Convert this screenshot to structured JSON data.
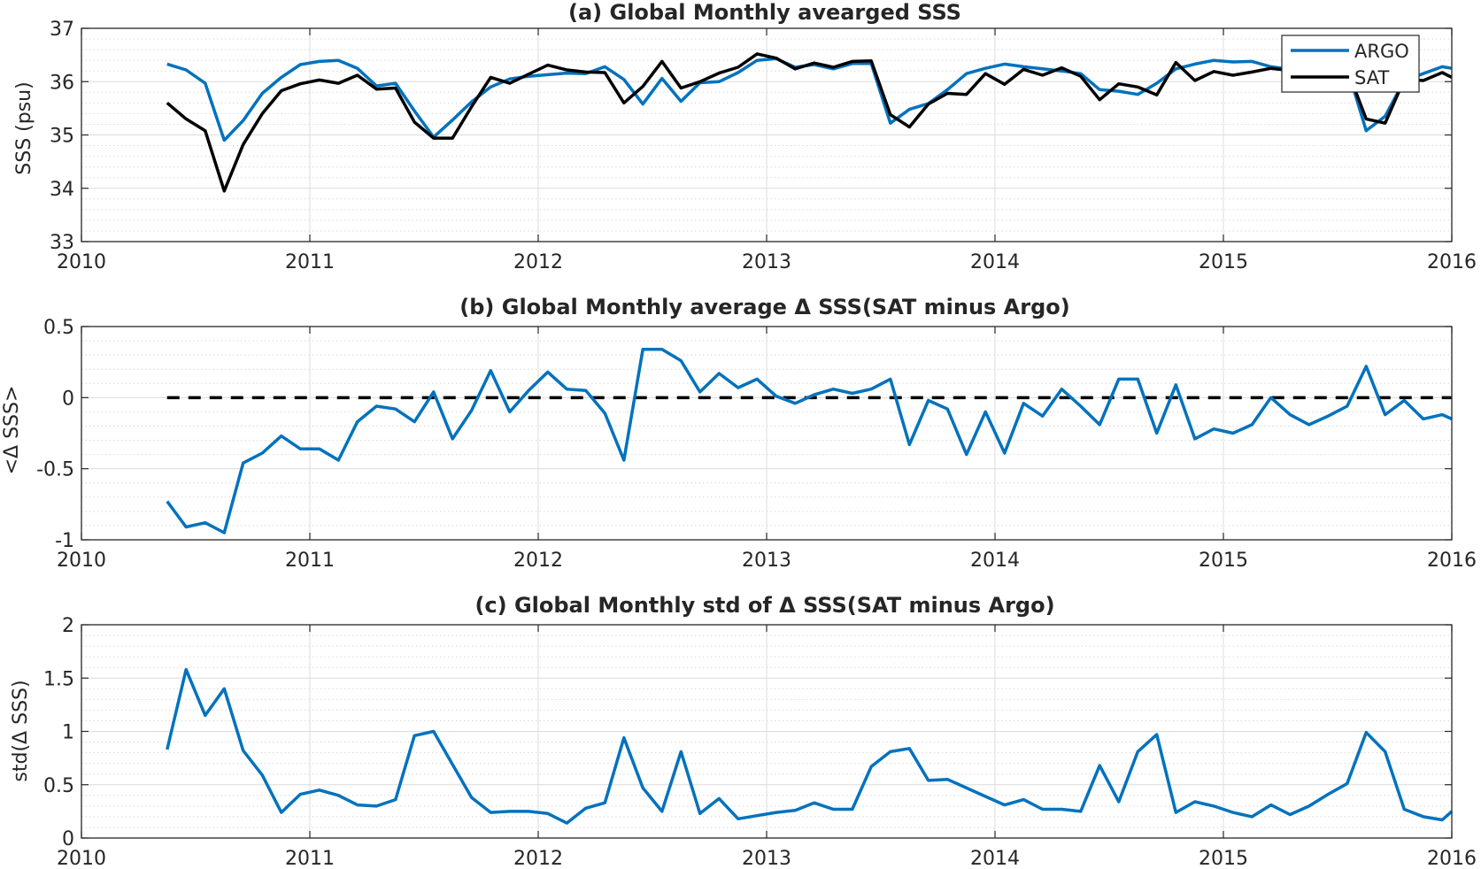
{
  "chart_data": [
    {
      "type": "line",
      "title": "(a) Global Monthly avearged SSS",
      "xlabel": "",
      "ylabel": "SSS (psu)",
      "xlim": [
        2010,
        2016
      ],
      "ylim": [
        33,
        37
      ],
      "xticks": [
        "2010",
        "2011",
        "2012",
        "2013",
        "2014",
        "2015",
        "2016"
      ],
      "yticks": [
        "33",
        "34",
        "35",
        "36",
        "37"
      ],
      "grid": true,
      "minor_grid": true,
      "legend": "top-right",
      "x": [
        2010.375,
        2010.458,
        2010.542,
        2010.625,
        2010.708,
        2010.792,
        2010.875,
        2010.958,
        2011.042,
        2011.125,
        2011.208,
        2011.292,
        2011.375,
        2011.458,
        2011.542,
        2011.625,
        2011.708,
        2011.792,
        2011.875,
        2011.958,
        2012.042,
        2012.125,
        2012.208,
        2012.292,
        2012.375,
        2012.458,
        2012.542,
        2012.625,
        2012.708,
        2012.792,
        2012.875,
        2012.958,
        2013.042,
        2013.125,
        2013.208,
        2013.292,
        2013.375,
        2013.458,
        2013.542,
        2013.625,
        2013.708,
        2013.792,
        2013.875,
        2013.958,
        2014.042,
        2014.125,
        2014.208,
        2014.292,
        2014.375,
        2014.458,
        2014.542,
        2014.625,
        2014.708,
        2014.792,
        2014.875,
        2014.958,
        2015.042,
        2015.125,
        2015.208,
        2015.292,
        2015.375,
        2015.458,
        2015.542,
        2015.625,
        2015.708,
        2015.792,
        2015.875,
        2015.958,
        2016.0
      ],
      "series": [
        {
          "name": "ARGO",
          "color": "#0072BD",
          "values": [
            36.33,
            36.22,
            35.97,
            34.9,
            35.27,
            35.78,
            36.08,
            36.32,
            36.38,
            36.4,
            36.25,
            35.92,
            35.97,
            35.45,
            34.96,
            35.28,
            35.62,
            35.9,
            36.05,
            36.1,
            36.13,
            36.16,
            36.15,
            36.28,
            36.04,
            35.58,
            36.06,
            35.63,
            35.98,
            36.0,
            36.17,
            36.4,
            36.43,
            36.27,
            36.32,
            36.24,
            36.34,
            36.34,
            35.22,
            35.48,
            35.59,
            35.85,
            36.15,
            36.25,
            36.33,
            36.28,
            36.24,
            36.2,
            36.15,
            35.85,
            35.82,
            35.76,
            35.97,
            36.24,
            36.33,
            36.4,
            36.37,
            36.38,
            36.28,
            36.23,
            36.27,
            36.22,
            36.26,
            35.08,
            35.35,
            36.02,
            36.15,
            36.28,
            36.25
          ]
        },
        {
          "name": "SAT",
          "color": "#000000",
          "values": [
            35.6,
            35.3,
            35.08,
            33.95,
            34.82,
            35.4,
            35.83,
            35.96,
            36.03,
            35.97,
            36.12,
            35.86,
            35.88,
            35.24,
            34.94,
            34.94,
            35.53,
            36.08,
            35.97,
            36.14,
            36.31,
            36.22,
            36.18,
            36.17,
            35.6,
            35.91,
            36.38,
            35.88,
            36.0,
            36.16,
            36.27,
            36.52,
            36.44,
            36.24,
            36.35,
            36.27,
            36.38,
            36.39,
            35.38,
            35.15,
            35.58,
            35.78,
            35.76,
            36.15,
            35.95,
            36.23,
            36.12,
            36.26,
            36.1,
            35.66,
            35.96,
            35.9,
            35.75,
            36.36,
            36.02,
            36.19,
            36.12,
            36.18,
            36.25,
            36.21,
            36.08,
            36.02,
            36.23,
            35.3,
            35.22,
            36.04,
            36.02,
            36.17,
            36.08
          ]
        }
      ]
    },
    {
      "type": "line",
      "title": "(b) Global Monthly average Δ SSS(SAT minus Argo)",
      "xlabel": "",
      "ylabel": "<Δ SSS>",
      "xlim": [
        2010,
        2016
      ],
      "ylim": [
        -1,
        0.5
      ],
      "xticks": [
        "2010",
        "2011",
        "2012",
        "2013",
        "2014",
        "2015",
        "2016"
      ],
      "yticks": [
        "-1",
        "-0.5",
        "0",
        "0.5"
      ],
      "grid": true,
      "minor_grid": true,
      "reference_line": {
        "y": 0,
        "style": "dashed",
        "color": "#000000",
        "x_start": 2010.375
      },
      "x": [
        2010.375,
        2010.458,
        2010.542,
        2010.625,
        2010.708,
        2010.792,
        2010.875,
        2010.958,
        2011.042,
        2011.125,
        2011.208,
        2011.292,
        2011.375,
        2011.458,
        2011.542,
        2011.625,
        2011.708,
        2011.792,
        2011.875,
        2011.958,
        2012.042,
        2012.125,
        2012.208,
        2012.292,
        2012.375,
        2012.458,
        2012.542,
        2012.625,
        2012.708,
        2012.792,
        2012.875,
        2012.958,
        2013.042,
        2013.125,
        2013.208,
        2013.292,
        2013.375,
        2013.458,
        2013.542,
        2013.625,
        2013.708,
        2013.792,
        2013.875,
        2013.958,
        2014.042,
        2014.125,
        2014.208,
        2014.292,
        2014.375,
        2014.458,
        2014.542,
        2014.625,
        2014.708,
        2014.792,
        2014.875,
        2014.958,
        2015.042,
        2015.125,
        2015.208,
        2015.292,
        2015.375,
        2015.458,
        2015.542,
        2015.625,
        2015.708,
        2015.792,
        2015.875,
        2015.958,
        2016.0
      ],
      "series": [
        {
          "color": "#0072BD",
          "values": [
            -0.73,
            -0.91,
            -0.88,
            -0.95,
            -0.46,
            -0.39,
            -0.27,
            -0.36,
            -0.36,
            -0.44,
            -0.17,
            -0.06,
            -0.08,
            -0.17,
            0.04,
            -0.29,
            -0.09,
            0.19,
            -0.1,
            0.05,
            0.18,
            0.06,
            0.05,
            -0.11,
            -0.44,
            0.34,
            0.34,
            0.26,
            0.04,
            0.17,
            0.07,
            0.13,
            0.01,
            -0.04,
            0.02,
            0.06,
            0.03,
            0.06,
            0.13,
            -0.33,
            -0.02,
            -0.08,
            -0.4,
            -0.1,
            -0.39,
            -0.04,
            -0.13,
            0.06,
            -0.06,
            -0.19,
            0.13,
            0.13,
            -0.25,
            0.09,
            -0.29,
            -0.22,
            -0.25,
            -0.19,
            0.0,
            -0.12,
            -0.19,
            -0.13,
            -0.06,
            0.22,
            -0.12,
            -0.02,
            -0.15,
            -0.12,
            -0.15
          ]
        }
      ]
    },
    {
      "type": "line",
      "title": "(c) Global Monthly std of Δ SSS(SAT minus Argo)",
      "xlabel": "",
      "ylabel": "std(Δ SSS)",
      "xlim": [
        2010,
        2016
      ],
      "ylim": [
        0,
        2
      ],
      "xticks": [
        "2010",
        "2011",
        "2012",
        "2013",
        "2014",
        "2015",
        "2016"
      ],
      "yticks": [
        "0",
        "0.5",
        "1",
        "1.5",
        "2"
      ],
      "grid": true,
      "minor_grid": true,
      "x": [
        2010.375,
        2010.458,
        2010.542,
        2010.625,
        2010.708,
        2010.792,
        2010.875,
        2010.958,
        2011.042,
        2011.125,
        2011.208,
        2011.292,
        2011.375,
        2011.458,
        2011.542,
        2011.625,
        2011.708,
        2011.792,
        2011.875,
        2011.958,
        2012.042,
        2012.125,
        2012.208,
        2012.292,
        2012.375,
        2012.458,
        2012.542,
        2012.625,
        2012.708,
        2012.792,
        2012.875,
        2012.958,
        2013.042,
        2013.125,
        2013.208,
        2013.292,
        2013.375,
        2013.458,
        2013.542,
        2013.625,
        2013.708,
        2013.792,
        2013.875,
        2013.958,
        2014.042,
        2014.125,
        2014.208,
        2014.292,
        2014.375,
        2014.458,
        2014.542,
        2014.625,
        2014.708,
        2014.792,
        2014.875,
        2014.958,
        2015.042,
        2015.125,
        2015.208,
        2015.292,
        2015.375,
        2015.458,
        2015.542,
        2015.625,
        2015.708,
        2015.792,
        2015.875,
        2015.958,
        2016.0
      ],
      "series": [
        {
          "color": "#0072BD",
          "values": [
            0.83,
            1.58,
            1.15,
            1.4,
            0.82,
            0.59,
            0.24,
            0.41,
            0.45,
            0.4,
            0.31,
            0.3,
            0.36,
            0.96,
            1.0,
            0.69,
            0.38,
            0.24,
            0.25,
            0.25,
            0.23,
            0.14,
            0.28,
            0.33,
            0.94,
            0.47,
            0.25,
            0.81,
            0.23,
            0.37,
            0.18,
            0.21,
            0.24,
            0.26,
            0.33,
            0.27,
            0.27,
            0.67,
            0.81,
            0.84,
            0.54,
            0.55,
            0.47,
            0.39,
            0.31,
            0.36,
            0.27,
            0.27,
            0.25,
            0.68,
            0.34,
            0.81,
            0.97,
            0.24,
            0.34,
            0.3,
            0.24,
            0.2,
            0.31,
            0.22,
            0.3,
            0.41,
            0.51,
            0.99,
            0.81,
            0.27,
            0.2,
            0.17,
            0.25
          ]
        }
      ]
    }
  ]
}
